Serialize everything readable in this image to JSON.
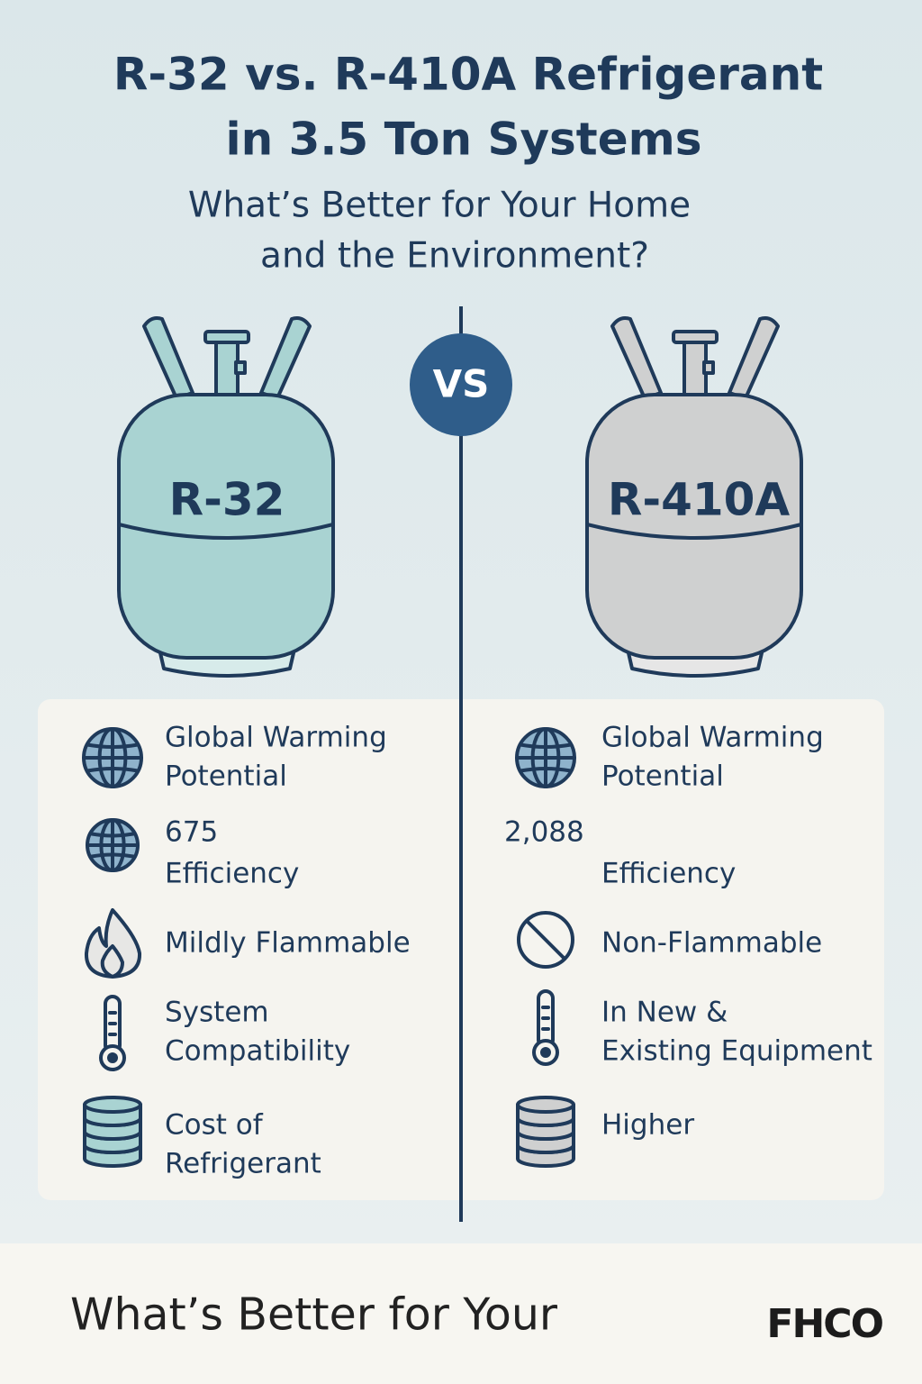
{
  "header": {
    "title": [
      "R-32 vs. R-410A Refrigerant",
      "in 3.5 Ton Systems"
    ],
    "subtitle": [
      "What’s Better for Your Home",
      "and the Environment?"
    ]
  },
  "vs": "VS",
  "left": {
    "label": "R-32",
    "items": [
      [
        "Global Warming",
        "Potential"
      ],
      [
        "675"
      ],
      [
        "Efficiency"
      ],
      [
        "Mildly Flammable"
      ],
      [
        "System",
        "Compatibility"
      ],
      [
        "Cost of",
        "Refrigerant"
      ]
    ]
  },
  "right": {
    "label": "R-410A",
    "items": [
      [
        "Global Warming",
        "Potential"
      ],
      [
        "2,088"
      ],
      [
        "Efficiency"
      ],
      [
        "Non-Flammable"
      ],
      [
        "In New &",
        "Existing Equipment"
      ],
      [
        "Higher"
      ]
    ]
  },
  "footer": {
    "text": "What’s Better for Your",
    "logo": "FHCO"
  }
}
